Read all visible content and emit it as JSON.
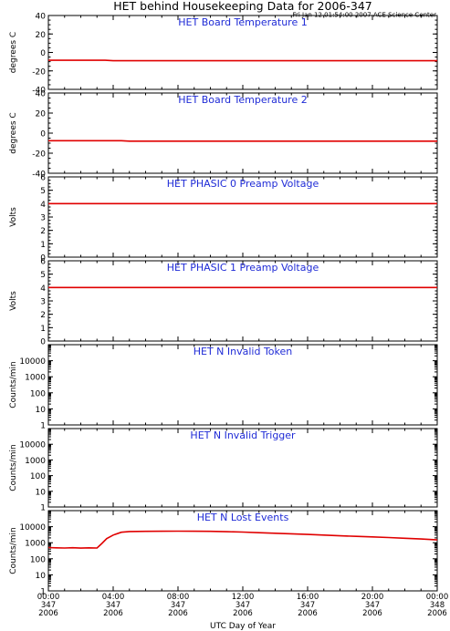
{
  "title": "HET behind Housekeeping Data for 2006-347",
  "timestamp": "Fri Jan 12 01:54:00 2007 ACE Science Center",
  "xlabel": "UTC Day of Year",
  "x_ticks": [
    {
      "time": "00:00",
      "doy": "347",
      "year": "2006"
    },
    {
      "time": "04:00",
      "doy": "347",
      "year": "2006"
    },
    {
      "time": "08:00",
      "doy": "347",
      "year": "2006"
    },
    {
      "time": "12:00",
      "doy": "347",
      "year": "2006"
    },
    {
      "time": "16:00",
      "doy": "347",
      "year": "2006"
    },
    {
      "time": "20:00",
      "doy": "347",
      "year": "2006"
    },
    {
      "time": "00:00",
      "doy": "348",
      "year": "2006"
    }
  ],
  "colors": {
    "title": "#1f2bd6",
    "data": "#e00000",
    "axes": "#000000"
  },
  "chart_data": [
    {
      "type": "line",
      "title": "HET Board Temperature 1",
      "ylabel": "degrees C",
      "ylim": [
        -40,
        40
      ],
      "yscale": "linear",
      "yticks": [
        40,
        20,
        0,
        -20,
        -40
      ],
      "series": [
        {
          "x": [
            0,
            3.5,
            4,
            24
          ],
          "values": [
            -8.5,
            -8.5,
            -9,
            -9
          ]
        }
      ]
    },
    {
      "type": "line",
      "title": "HET Board Temperature 2",
      "ylabel": "degrees C",
      "ylim": [
        -40,
        40
      ],
      "yscale": "linear",
      "yticks": [
        40,
        20,
        0,
        -20,
        -40
      ],
      "series": [
        {
          "x": [
            0,
            4.5,
            5,
            24
          ],
          "values": [
            -7.5,
            -7.5,
            -8,
            -8
          ]
        }
      ]
    },
    {
      "type": "line",
      "title": "HET PHASIC 0 Preamp Voltage",
      "ylabel": "Volts",
      "ylim": [
        0,
        6
      ],
      "yscale": "linear",
      "yticks": [
        6,
        5,
        4,
        3,
        2,
        1,
        0
      ],
      "series": [
        {
          "x": [
            0,
            24
          ],
          "values": [
            4.0,
            4.0
          ]
        }
      ]
    },
    {
      "type": "line",
      "title": "HET PHASIC 1 Preamp Voltage",
      "ylabel": "Volts",
      "ylim": [
        0,
        6
      ],
      "yscale": "linear",
      "yticks": [
        6,
        5,
        4,
        3,
        2,
        1,
        0
      ],
      "series": [
        {
          "x": [
            0,
            24
          ],
          "values": [
            4.0,
            4.0
          ]
        }
      ]
    },
    {
      "type": "line",
      "title": "HET N Invalid Token",
      "ylabel": "Counts/min",
      "ylim": [
        1,
        100000
      ],
      "yscale": "log",
      "yticks": [
        10000,
        1000,
        100,
        10,
        1
      ],
      "series": []
    },
    {
      "type": "line",
      "title": "HET N Invalid Trigger",
      "ylabel": "Counts/min",
      "ylim": [
        1,
        100000
      ],
      "yscale": "log",
      "yticks": [
        10000,
        1000,
        100,
        10,
        1
      ],
      "series": []
    },
    {
      "type": "line",
      "title": "HET N Lost Events",
      "ylabel": "Counts/min",
      "ylim": [
        1,
        100000
      ],
      "yscale": "log",
      "yticks": [
        10000,
        1000,
        100,
        10,
        1
      ],
      "series": [
        {
          "x": [
            0,
            0.5,
            1.0,
            1.5,
            2.0,
            2.5,
            3.0,
            3.3,
            3.6,
            4.0,
            4.5,
            5.0,
            6,
            7,
            8,
            9,
            10,
            11,
            12,
            13,
            14,
            15,
            16,
            17,
            18,
            19,
            20,
            21,
            22,
            23,
            24
          ],
          "values": [
            500,
            480,
            470,
            490,
            460,
            480,
            470,
            900,
            1800,
            3000,
            4500,
            5000,
            5100,
            5200,
            5300,
            5200,
            5100,
            4900,
            4600,
            4200,
            3900,
            3600,
            3300,
            3000,
            2700,
            2500,
            2300,
            2100,
            1900,
            1700,
            1500
          ]
        }
      ]
    }
  ]
}
